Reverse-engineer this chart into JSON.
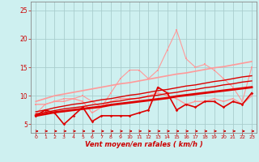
{
  "background_color": "#cef0f0",
  "grid_color": "#aacece",
  "xlabel": "Vent moyen/en rafales ( km/h )",
  "xlabel_color": "#cc0000",
  "tick_color": "#cc0000",
  "x_ticks": [
    0,
    1,
    2,
    3,
    4,
    5,
    6,
    7,
    8,
    9,
    10,
    11,
    12,
    13,
    14,
    15,
    16,
    17,
    18,
    19,
    20,
    21,
    22,
    23
  ],
  "ylim": [
    3.5,
    26.5
  ],
  "xlim": [
    -0.5,
    23.5
  ],
  "yticks": [
    5,
    10,
    15,
    20,
    25
  ],
  "line_dark1_x": [
    0,
    1,
    2,
    3,
    4,
    5,
    6,
    7,
    8,
    9,
    10,
    11,
    12,
    13,
    14,
    15,
    16,
    17,
    18,
    19,
    20,
    21,
    22,
    23
  ],
  "line_dark1_y": [
    6.5,
    7.5,
    7.0,
    5.0,
    6.5,
    8.0,
    5.5,
    6.5,
    6.5,
    6.5,
    6.5,
    7.0,
    7.5,
    11.5,
    10.5,
    7.5,
    8.5,
    8.0,
    9.0,
    9.0,
    8.0,
    9.0,
    8.5,
    10.5
  ],
  "line_dark1_color": "#dd0000",
  "line_dark1_lw": 1.2,
  "line_dark2_x": [
    0,
    1,
    2,
    3,
    4,
    5,
    6,
    7,
    8,
    9,
    10,
    11,
    12,
    13,
    14,
    15,
    16,
    17,
    18,
    19,
    20,
    21,
    22,
    23
  ],
  "line_dark2_y": [
    6.5,
    6.8,
    7.1,
    7.3,
    7.5,
    7.7,
    7.9,
    8.1,
    8.4,
    8.6,
    8.8,
    9.0,
    9.2,
    9.4,
    9.6,
    9.9,
    10.1,
    10.3,
    10.5,
    10.7,
    10.9,
    11.1,
    11.3,
    11.5
  ],
  "line_dark2_color": "#dd0000",
  "line_dark2_lw": 2.0,
  "line_dark3_x": [
    0,
    1,
    2,
    3,
    4,
    5,
    6,
    7,
    8,
    9,
    10,
    11,
    12,
    13,
    14,
    15,
    16,
    17,
    18,
    19,
    20,
    21,
    22,
    23
  ],
  "line_dark3_y": [
    6.8,
    7.1,
    7.4,
    7.7,
    7.9,
    8.1,
    8.4,
    8.6,
    8.9,
    9.1,
    9.4,
    9.6,
    9.9,
    10.1,
    10.4,
    10.6,
    10.9,
    11.1,
    11.4,
    11.6,
    11.9,
    12.1,
    12.4,
    12.6
  ],
  "line_dark3_color": "#dd0000",
  "line_dark3_lw": 1.0,
  "line_dark4_x": [
    0,
    1,
    2,
    3,
    4,
    5,
    6,
    7,
    8,
    9,
    10,
    11,
    12,
    13,
    14,
    15,
    16,
    17,
    18,
    19,
    20,
    21,
    22,
    23
  ],
  "line_dark4_y": [
    7.2,
    7.5,
    7.9,
    8.2,
    8.5,
    8.7,
    9.0,
    9.3,
    9.5,
    9.8,
    10.1,
    10.3,
    10.6,
    10.9,
    11.1,
    11.4,
    11.7,
    11.9,
    12.2,
    12.5,
    12.7,
    13.0,
    13.3,
    13.5
  ],
  "line_dark4_color": "#dd0000",
  "line_dark4_lw": 1.0,
  "line_pink1_x": [
    0,
    1,
    2,
    3,
    4,
    5,
    6,
    7,
    8,
    9,
    10,
    11,
    12,
    13,
    14,
    15,
    16,
    17,
    18,
    19,
    20,
    21,
    22,
    23
  ],
  "line_pink1_y": [
    8.5,
    8.5,
    9.0,
    9.0,
    9.5,
    9.0,
    7.0,
    8.0,
    9.0,
    9.5,
    9.5,
    9.5,
    10.0,
    10.5,
    10.0,
    9.5,
    8.5,
    9.0,
    9.0,
    9.5,
    9.0,
    9.5,
    8.5,
    10.0
  ],
  "line_pink1_color": "#ff9999",
  "line_pink1_lw": 1.0,
  "line_pink2_x": [
    0,
    1,
    2,
    3,
    4,
    5,
    6,
    7,
    8,
    9,
    10,
    11,
    12,
    13,
    14,
    15,
    16,
    17,
    18,
    19,
    20,
    21,
    22,
    23
  ],
  "line_pink2_y": [
    9.0,
    9.5,
    10.0,
    10.3,
    10.6,
    10.9,
    11.2,
    11.5,
    11.8,
    12.1,
    12.3,
    12.6,
    12.9,
    13.2,
    13.5,
    13.8,
    14.0,
    14.3,
    14.6,
    14.9,
    15.1,
    15.4,
    15.7,
    16.0
  ],
  "line_pink2_color": "#ff9999",
  "line_pink2_lw": 1.2,
  "line_pink3_x": [
    0,
    1,
    2,
    3,
    4,
    5,
    6,
    7,
    8,
    9,
    10,
    11,
    12,
    13,
    14,
    15,
    16,
    17,
    18,
    19,
    20,
    21,
    22,
    23
  ],
  "line_pink3_y": [
    6.8,
    8.5,
    9.0,
    9.5,
    9.5,
    10.0,
    9.0,
    8.0,
    10.5,
    13.0,
    14.5,
    14.5,
    13.0,
    14.5,
    18.0,
    21.5,
    16.5,
    15.0,
    15.5,
    14.5,
    13.0,
    11.5,
    9.0,
    15.0
  ],
  "line_pink3_color": "#ff9999",
  "line_pink3_lw": 0.8,
  "arrow_color": "#cc0000"
}
